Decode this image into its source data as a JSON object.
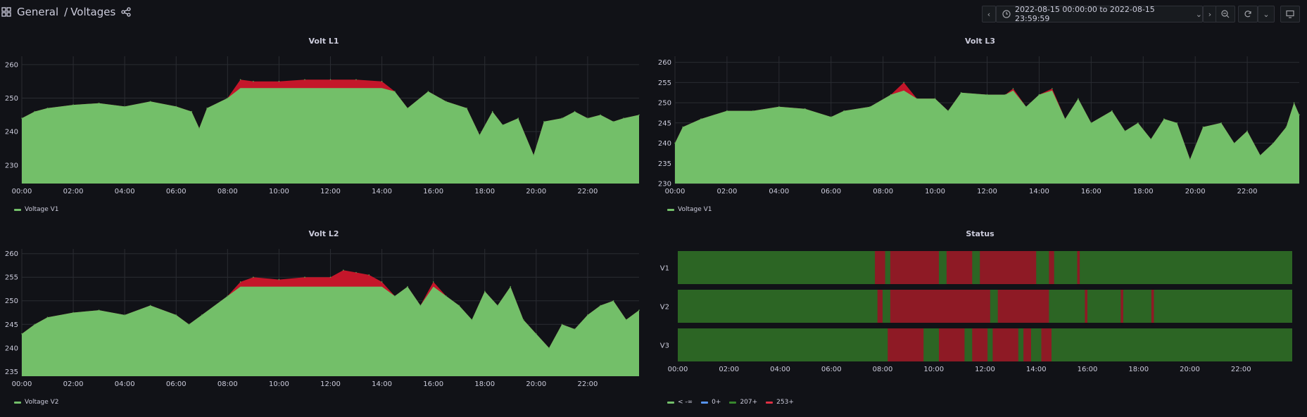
{
  "breadcrumb": {
    "folder": "General",
    "separator": "/",
    "dashboard": "Voltages"
  },
  "time_range": "2022-08-15 00:00:00 to 2022-08-15 23:59:59",
  "icons": [
    "dashboards-icon",
    "share-icon",
    "chevron-left-icon",
    "clock-icon",
    "chevron-down-icon",
    "chevron-right-icon",
    "zoom-out-icon",
    "refresh-icon",
    "caret-down-icon",
    "tv-mode-icon"
  ],
  "colors": {
    "background": "#111217",
    "series_green": "#73bf69",
    "threshold_red": "#c4162a",
    "status_green": "#2c6524",
    "status_red": "#8e1a25",
    "blue": "#5794f2"
  },
  "panels": {
    "l1": {
      "title": "Volt L1",
      "legend": "Voltage V1"
    },
    "l3": {
      "title": "Volt L3",
      "legend": "Voltage V1"
    },
    "l2": {
      "title": "Volt L2",
      "legend": "Voltage V2"
    },
    "status": {
      "title": "Status",
      "legend": [
        {
          "label": "< -∞",
          "color": "#73bf69"
        },
        {
          "label": "0+",
          "color": "#5794f2"
        },
        {
          "label": "207+",
          "color": "#37872d"
        },
        {
          "label": "253+",
          "color": "#e02f44"
        }
      ]
    }
  },
  "chart_data": [
    {
      "type": "area",
      "title": "Volt L1",
      "series_name": "Voltage V1",
      "x_ticks": [
        "00:00",
        "02:00",
        "04:00",
        "06:00",
        "08:00",
        "10:00",
        "12:00",
        "14:00",
        "16:00",
        "18:00",
        "20:00",
        "22:00"
      ],
      "y_ticks": [
        230,
        240,
        250,
        260
      ],
      "ylim": [
        224.5,
        262.5
      ],
      "threshold": 253,
      "points": [
        [
          0,
          244
        ],
        [
          0.5,
          246
        ],
        [
          1,
          247
        ],
        [
          2,
          248
        ],
        [
          3,
          248.5
        ],
        [
          4,
          247.5
        ],
        [
          5,
          249
        ],
        [
          6,
          247.5
        ],
        [
          6.6,
          246
        ],
        [
          6.9,
          241
        ],
        [
          7.2,
          247
        ],
        [
          8,
          250
        ],
        [
          8.5,
          255.5
        ],
        [
          9,
          255
        ],
        [
          10,
          255
        ],
        [
          11,
          255.5
        ],
        [
          12,
          255.5
        ],
        [
          13,
          255.5
        ],
        [
          14,
          255
        ],
        [
          14.5,
          252
        ],
        [
          15,
          247
        ],
        [
          15.8,
          252
        ],
        [
          16.5,
          249
        ],
        [
          17.3,
          247
        ],
        [
          17.8,
          239
        ],
        [
          18.3,
          246
        ],
        [
          18.7,
          242
        ],
        [
          19.3,
          244
        ],
        [
          19.9,
          233
        ],
        [
          20.3,
          243
        ],
        [
          21,
          244
        ],
        [
          21.5,
          246
        ],
        [
          22,
          244
        ],
        [
          22.5,
          245
        ],
        [
          23,
          243
        ],
        [
          23.4,
          244
        ],
        [
          24,
          245
        ]
      ]
    },
    {
      "type": "area",
      "title": "Volt L3",
      "series_name": "Voltage V1",
      "x_ticks": [
        "00:00",
        "02:00",
        "04:00",
        "06:00",
        "08:00",
        "10:00",
        "12:00",
        "14:00",
        "16:00",
        "18:00",
        "20:00",
        "22:00"
      ],
      "y_ticks": [
        230,
        235,
        240,
        245,
        250,
        255,
        260
      ],
      "ylim": [
        230,
        261.5
      ],
      "threshold": 253,
      "points": [
        [
          0,
          240
        ],
        [
          0.3,
          244
        ],
        [
          1,
          246
        ],
        [
          2,
          248
        ],
        [
          3,
          248
        ],
        [
          4,
          249
        ],
        [
          5,
          248.5
        ],
        [
          6,
          246.5
        ],
        [
          6.5,
          248
        ],
        [
          7.5,
          249
        ],
        [
          8.3,
          252
        ],
        [
          8.8,
          255
        ],
        [
          9.3,
          251
        ],
        [
          10,
          251
        ],
        [
          10.5,
          248
        ],
        [
          11,
          252.5
        ],
        [
          12,
          252
        ],
        [
          12.7,
          252
        ],
        [
          13,
          253.5
        ],
        [
          13.5,
          249
        ],
        [
          14,
          252
        ],
        [
          14.5,
          253.5
        ],
        [
          15,
          246
        ],
        [
          15.5,
          251
        ],
        [
          16,
          245
        ],
        [
          16.8,
          248
        ],
        [
          17.3,
          243
        ],
        [
          17.8,
          245
        ],
        [
          18.3,
          241
        ],
        [
          18.8,
          246
        ],
        [
          19.3,
          245
        ],
        [
          19.8,
          236
        ],
        [
          20.3,
          244
        ],
        [
          21,
          245
        ],
        [
          21.5,
          240
        ],
        [
          22,
          243
        ],
        [
          22.5,
          237
        ],
        [
          23,
          240
        ],
        [
          23.5,
          244
        ],
        [
          23.8,
          250
        ],
        [
          24,
          247
        ]
      ]
    },
    {
      "type": "area",
      "title": "Volt L2",
      "series_name": "Voltage V2",
      "x_ticks": [
        "00:00",
        "02:00",
        "04:00",
        "06:00",
        "08:00",
        "10:00",
        "12:00",
        "14:00",
        "16:00",
        "18:00",
        "20:00",
        "22:00"
      ],
      "y_ticks": [
        235,
        240,
        245,
        250,
        255,
        260
      ],
      "ylim": [
        234,
        261
      ],
      "threshold": 253,
      "points": [
        [
          0,
          243
        ],
        [
          0.5,
          245
        ],
        [
          1,
          246.5
        ],
        [
          2,
          247.5
        ],
        [
          3,
          248
        ],
        [
          4,
          247
        ],
        [
          5,
          249
        ],
        [
          6,
          247
        ],
        [
          6.5,
          245
        ],
        [
          7,
          247
        ],
        [
          8,
          251
        ],
        [
          8.5,
          254
        ],
        [
          9,
          255
        ],
        [
          10,
          254.5
        ],
        [
          11,
          255
        ],
        [
          12,
          255
        ],
        [
          12.5,
          256.5
        ],
        [
          13,
          256
        ],
        [
          13.5,
          255.5
        ],
        [
          14,
          254
        ],
        [
          14.5,
          251
        ],
        [
          15,
          253
        ],
        [
          15.5,
          249
        ],
        [
          16,
          254
        ],
        [
          16.5,
          251
        ],
        [
          17,
          249
        ],
        [
          17.5,
          246
        ],
        [
          18,
          252
        ],
        [
          18.5,
          249
        ],
        [
          19,
          253
        ],
        [
          19.5,
          246
        ],
        [
          20,
          243
        ],
        [
          20.5,
          240
        ],
        [
          21,
          245
        ],
        [
          21.5,
          244
        ],
        [
          22,
          247
        ],
        [
          22.5,
          249
        ],
        [
          23,
          250
        ],
        [
          23.5,
          246
        ],
        [
          24,
          248
        ]
      ]
    },
    {
      "type": "state-timeline",
      "title": "Status",
      "rows": [
        "V1",
        "V2",
        "V3"
      ],
      "x_ticks": [
        "00:00",
        "02:00",
        "04:00",
        "06:00",
        "08:00",
        "10:00",
        "12:00",
        "14:00",
        "16:00",
        "18:00",
        "20:00",
        "22:00"
      ],
      "red_intervals": {
        "V1": [
          [
            7.7,
            8.1
          ],
          [
            8.3,
            10.2
          ],
          [
            10.5,
            11.5
          ],
          [
            11.8,
            14.0
          ],
          [
            14.5,
            14.7
          ],
          [
            15.6,
            15.7
          ]
        ],
        "V2": [
          [
            7.8,
            8.0
          ],
          [
            8.3,
            12.2
          ],
          [
            12.5,
            14.5
          ],
          [
            15.9,
            16.0
          ],
          [
            17.3,
            17.4
          ],
          [
            18.5,
            18.6
          ]
        ],
        "V3": [
          [
            8.2,
            9.6
          ],
          [
            10.2,
            11.2
          ],
          [
            11.5,
            12.1
          ],
          [
            12.3,
            13.3
          ],
          [
            13.5,
            13.8
          ],
          [
            14.2,
            14.6
          ]
        ]
      }
    }
  ]
}
